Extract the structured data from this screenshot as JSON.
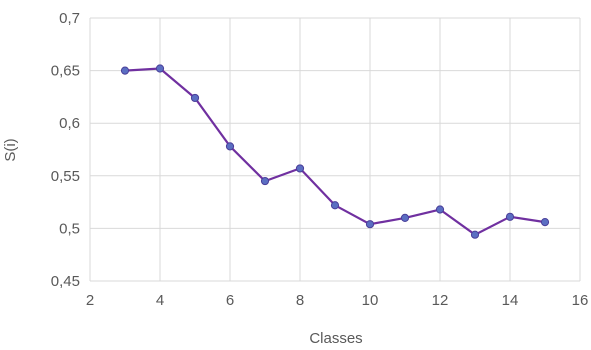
{
  "chart_data": {
    "type": "line",
    "xlabel": "Classes",
    "ylabel": "S(i)",
    "xlim": [
      2,
      16
    ],
    "ylim": [
      0.45,
      0.7
    ],
    "x_ticks": [
      2,
      4,
      6,
      8,
      10,
      12,
      14,
      16
    ],
    "y_ticks": [
      0.45,
      0.5,
      0.55,
      0.6,
      0.65,
      0.7
    ],
    "x_tick_labels": [
      "2",
      "4",
      "6",
      "8",
      "10",
      "12",
      "14",
      "16"
    ],
    "y_tick_labels": [
      "0,45",
      "0,5",
      "0,55",
      "0,6",
      "0,65",
      "0,7"
    ],
    "grid": true,
    "legend": "none",
    "series": [
      {
        "x": [
          3,
          4,
          5,
          6,
          7,
          8,
          9,
          10,
          11,
          12,
          13,
          14,
          15
        ],
        "y": [
          0.65,
          0.652,
          0.624,
          0.578,
          0.545,
          0.557,
          0.522,
          0.504,
          0.51,
          0.518,
          0.494,
          0.511,
          0.506
        ],
        "line_color": "#7030a0",
        "marker_color": "#5b6ec2"
      }
    ]
  }
}
